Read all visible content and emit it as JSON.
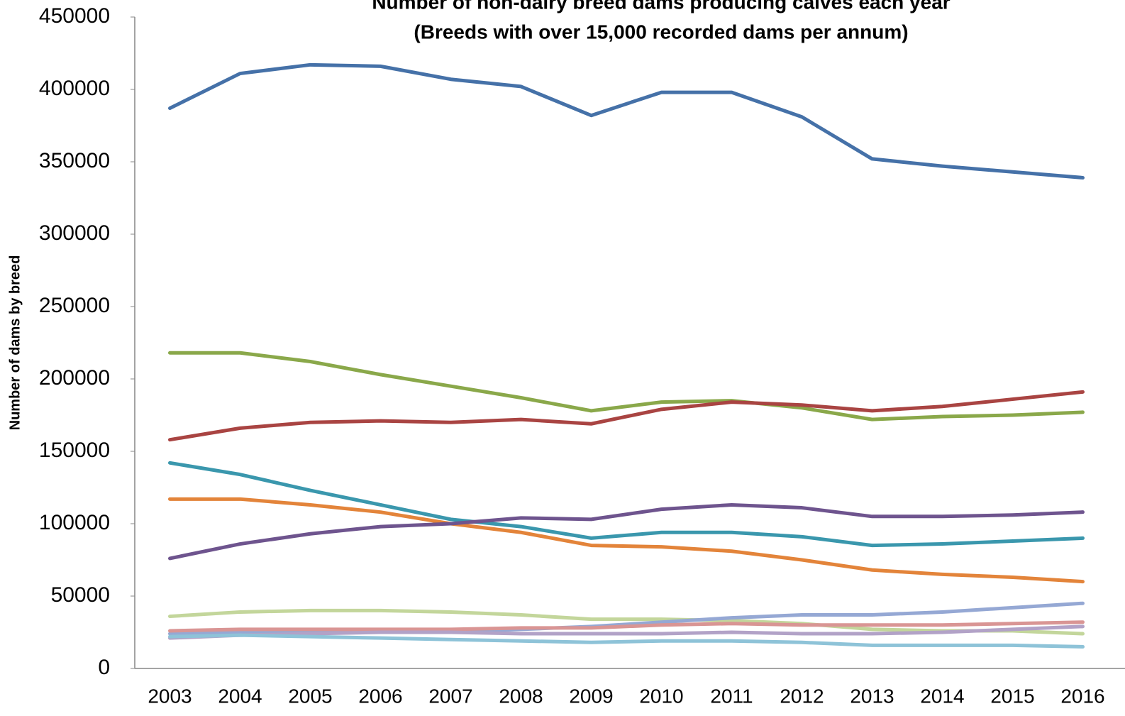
{
  "chart_data": {
    "type": "line",
    "title": [
      "Number of non-dairy breed dams producing calves each year",
      "(Breeds with over 15,000 recorded dams per annum)"
    ],
    "y_label": "Number of dams by breed",
    "categories": [
      "2003",
      "2004",
      "2005",
      "2006",
      "2007",
      "2008",
      "2009",
      "2010",
      "2011",
      "2012",
      "2013",
      "2014",
      "2015",
      "2016"
    ],
    "ylim": [
      0,
      450000
    ],
    "yticks": [
      0,
      50000,
      100000,
      150000,
      200000,
      250000,
      300000,
      350000,
      400000,
      450000
    ],
    "grid": false,
    "series": [
      {
        "color": "#4571a8",
        "values": [
          387000,
          411000,
          417000,
          416000,
          407000,
          402000,
          382000,
          398000,
          398000,
          381000,
          352000,
          347000,
          343000,
          339000
        ]
      },
      {
        "color": "#8aa84a",
        "values": [
          218000,
          218000,
          212000,
          203000,
          195000,
          187000,
          178000,
          184000,
          185000,
          180000,
          172000,
          174000,
          175000,
          177000
        ]
      },
      {
        "color": "#a94442",
        "values": [
          158000,
          166000,
          170000,
          171000,
          170000,
          172000,
          169000,
          179000,
          184000,
          182000,
          178000,
          181000,
          186000,
          191000
        ]
      },
      {
        "color": "#3a97ad",
        "values": [
          142000,
          134000,
          123000,
          113000,
          103000,
          98000,
          90000,
          94000,
          94000,
          91000,
          85000,
          86000,
          88000,
          90000
        ]
      },
      {
        "color": "#e3843a",
        "values": [
          117000,
          117000,
          113000,
          108000,
          100000,
          94000,
          85000,
          84000,
          81000,
          75000,
          68000,
          65000,
          63000,
          60000
        ]
      },
      {
        "color": "#6e548e",
        "values": [
          76000,
          86000,
          93000,
          98000,
          100000,
          104000,
          103000,
          110000,
          113000,
          111000,
          105000,
          105000,
          106000,
          108000
        ]
      },
      {
        "color": "#c3d69b",
        "values": [
          36000,
          39000,
          40000,
          40000,
          39000,
          37000,
          34000,
          34000,
          33000,
          31000,
          27000,
          26000,
          26000,
          24000
        ]
      },
      {
        "color": "#95a8d4",
        "values": [
          24000,
          25000,
          25000,
          25000,
          25000,
          27000,
          29000,
          32000,
          35000,
          37000,
          37000,
          39000,
          42000,
          45000
        ]
      },
      {
        "color": "#d99594",
        "values": [
          26000,
          27000,
          27000,
          27000,
          27000,
          28000,
          28000,
          30000,
          31000,
          30000,
          30000,
          30000,
          31000,
          32000
        ]
      },
      {
        "color": "#b2a2c7",
        "values": [
          21000,
          23000,
          24000,
          25000,
          25000,
          24000,
          24000,
          24000,
          25000,
          24000,
          24000,
          25000,
          27000,
          29000
        ]
      },
      {
        "color": "#8ec3d8",
        "values": [
          22000,
          23000,
          22000,
          21000,
          20000,
          19000,
          18000,
          19000,
          19000,
          18000,
          16000,
          16000,
          16000,
          15000
        ]
      }
    ]
  }
}
